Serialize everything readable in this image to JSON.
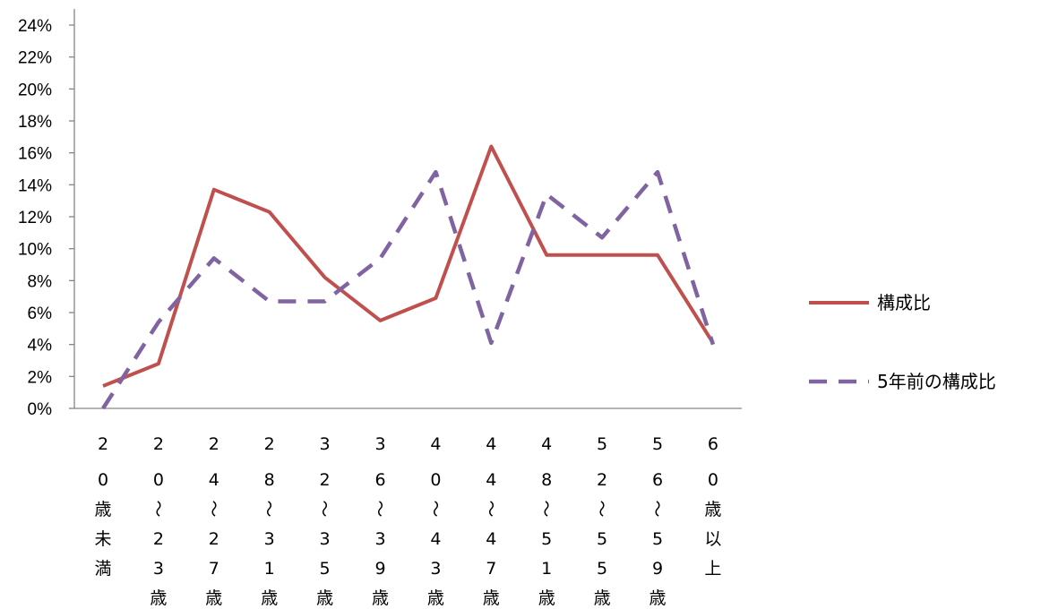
{
  "chart_data": {
    "type": "line",
    "categories": [
      "20歳未満",
      "20〜23歳",
      "24〜27歳",
      "28〜31歳",
      "32〜35歳",
      "36〜39歳",
      "40〜43歳",
      "44〜47歳",
      "48〜51歳",
      "52〜55歳",
      "56〜59歳",
      "60歳以上"
    ],
    "category_columns": [
      [
        "2",
        "0",
        "歳",
        "未",
        "満"
      ],
      [
        "2",
        "0",
        "〜",
        "2",
        "3",
        "歳"
      ],
      [
        "2",
        "4",
        "〜",
        "2",
        "7",
        "歳"
      ],
      [
        "2",
        "8",
        "〜",
        "3",
        "1",
        "歳"
      ],
      [
        "3",
        "2",
        "〜",
        "3",
        "5",
        "歳"
      ],
      [
        "3",
        "6",
        "〜",
        "3",
        "9",
        "歳"
      ],
      [
        "4",
        "0",
        "〜",
        "4",
        "3",
        "歳"
      ],
      [
        "4",
        "4",
        "〜",
        "4",
        "7",
        "歳"
      ],
      [
        "4",
        "8",
        "〜",
        "5",
        "1",
        "歳"
      ],
      [
        "5",
        "2",
        "〜",
        "5",
        "5",
        "歳"
      ],
      [
        "5",
        "6",
        "〜",
        "5",
        "9",
        "歳"
      ],
      [
        "6",
        "0",
        "歳",
        "以",
        "上"
      ]
    ],
    "series": [
      {
        "name": "構成比",
        "values": [
          1.4,
          2.8,
          13.7,
          12.3,
          8.2,
          5.5,
          6.9,
          16.4,
          9.6,
          9.6,
          9.6,
          4.1
        ],
        "color": "#c0504d",
        "style": "solid"
      },
      {
        "name": "5年前の構成比",
        "values": [
          0.0,
          5.4,
          9.4,
          6.7,
          6.7,
          9.4,
          14.8,
          4.1,
          13.4,
          10.7,
          14.8,
          4.0
        ],
        "color": "#8064a2",
        "style": "dashed"
      }
    ],
    "yticks": [
      "0%",
      "2%",
      "4%",
      "6%",
      "8%",
      "10%",
      "12%",
      "14%",
      "16%",
      "18%",
      "20%",
      "22%",
      "24%"
    ],
    "ylim": [
      0,
      24
    ],
    "grid": false,
    "legend_position": "right"
  }
}
